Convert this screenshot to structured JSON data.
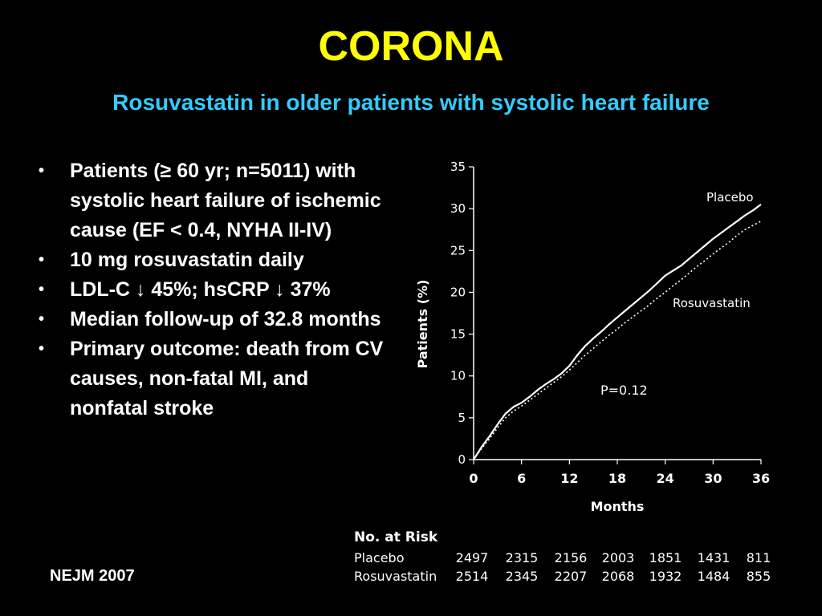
{
  "slide": {
    "title": "CORONA",
    "subtitle": "Rosuvastatin in older patients with systolic heart failure",
    "bullets": [
      "Patients (≥ 60 yr; n=5011) with systolic heart failure of ischemic cause (EF < 0.4, NYHA II-IV)",
      "10 mg rosuvastatin daily",
      "LDL-C ↓ 45%; hsCRP ↓ 37%",
      "Median follow-up of 32.8 months",
      "Primary outcome: death from CV causes, non-fatal MI, and nonfatal stroke"
    ],
    "source": "NEJM 2007"
  },
  "colors": {
    "background": "#000000",
    "title": "#FFFF00",
    "subtitle": "#33CCFF",
    "text": "#FFFFFF"
  },
  "chart_data": {
    "type": "line",
    "xlabel": "Months",
    "ylabel": "Patients (%)",
    "xlim": [
      0,
      36
    ],
    "ylim": [
      0,
      35
    ],
    "x_ticks": [
      0,
      6,
      12,
      18,
      24,
      30,
      36
    ],
    "y_ticks": [
      0,
      5,
      10,
      15,
      20,
      25,
      30,
      35
    ],
    "grid": false,
    "annotation": "P=0.12",
    "series": [
      {
        "name": "Placebo",
        "style": "solid",
        "x": [
          0,
          1,
          2,
          3,
          4,
          5,
          6,
          7,
          8,
          9,
          10,
          11,
          12,
          13,
          14,
          15,
          16,
          17,
          18,
          19,
          20,
          21,
          22,
          23,
          24,
          25,
          26,
          27,
          28,
          29,
          30,
          31,
          32,
          33,
          34,
          35,
          36
        ],
        "values": [
          0,
          1.5,
          2.8,
          4.2,
          5.5,
          6.3,
          6.8,
          7.5,
          8.3,
          9.0,
          9.6,
          10.3,
          11.2,
          12.5,
          13.6,
          14.5,
          15.3,
          16.2,
          17.0,
          17.8,
          18.6,
          19.4,
          20.2,
          21.1,
          22.0,
          22.6,
          23.2,
          24.0,
          24.8,
          25.6,
          26.4,
          27.1,
          27.8,
          28.5,
          29.2,
          29.8,
          30.5
        ]
      },
      {
        "name": "Rosuvastatin",
        "style": "dotted",
        "x": [
          0,
          1,
          2,
          3,
          4,
          5,
          6,
          7,
          8,
          9,
          10,
          11,
          12,
          13,
          14,
          15,
          16,
          17,
          18,
          19,
          20,
          21,
          22,
          23,
          24,
          25,
          26,
          27,
          28,
          29,
          30,
          31,
          32,
          33,
          34,
          35,
          36
        ],
        "values": [
          0,
          1.3,
          2.5,
          3.8,
          5.0,
          5.8,
          6.4,
          7.1,
          7.8,
          8.5,
          9.2,
          9.9,
          10.7,
          11.6,
          12.5,
          13.3,
          14.1,
          14.9,
          15.6,
          16.4,
          17.1,
          17.8,
          18.5,
          19.3,
          20.0,
          20.8,
          21.5,
          22.3,
          23.1,
          23.8,
          24.6,
          25.3,
          26.0,
          26.8,
          27.5,
          28.0,
          28.5
        ]
      }
    ],
    "risk_table": {
      "title": "No. at Risk",
      "rows": [
        {
          "label": "Placebo",
          "values": [
            "2497",
            "2315",
            "2156",
            "2003",
            "1851",
            "1431",
            "811"
          ]
        },
        {
          "label": "Rosuvastatin",
          "values": [
            "2514",
            "2345",
            "2207",
            "2068",
            "1932",
            "1484",
            "855"
          ]
        }
      ]
    }
  }
}
